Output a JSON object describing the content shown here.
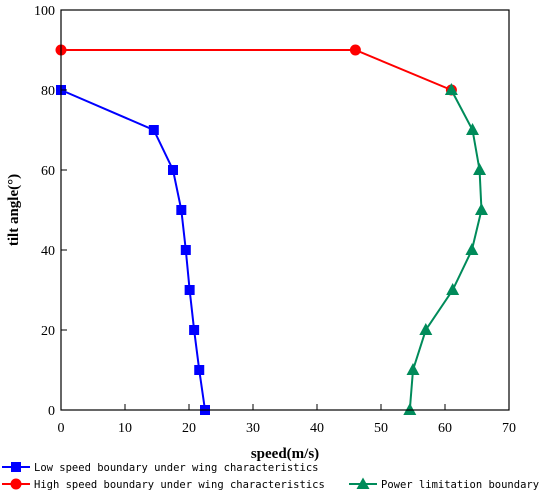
{
  "chart_data": {
    "type": "line",
    "xlabel": "speed(m/s)",
    "ylabel": "tilt angle(°)",
    "xlim": [
      0,
      70
    ],
    "ylim": [
      0,
      100
    ],
    "xticks": [
      0,
      10,
      20,
      30,
      40,
      50,
      60,
      70
    ],
    "yticks": [
      0,
      20,
      40,
      60,
      80,
      100
    ],
    "grid": false,
    "legend_position": "bottom",
    "series": [
      {
        "name": "Low speed boundary under wing characteristics",
        "color": "#0000ff",
        "marker": "square",
        "points": [
          [
            0,
            80
          ],
          [
            14.5,
            70
          ],
          [
            17.5,
            60
          ],
          [
            18.8,
            50
          ],
          [
            19.5,
            40
          ],
          [
            20.1,
            30
          ],
          [
            20.8,
            20
          ],
          [
            21.6,
            10
          ],
          [
            22.5,
            0
          ]
        ]
      },
      {
        "name": "High speed boundary under wing characteristics",
        "color": "#ff0000",
        "marker": "circle",
        "points": [
          [
            0,
            90
          ],
          [
            46,
            90
          ],
          [
            61,
            80
          ]
        ]
      },
      {
        "name": "Power limitation boundary",
        "color": "#008b5a",
        "marker": "triangle",
        "points": [
          [
            61,
            80
          ],
          [
            64.3,
            70
          ],
          [
            65.4,
            60
          ],
          [
            65.7,
            50
          ],
          [
            64.2,
            40
          ],
          [
            61.2,
            30
          ],
          [
            57,
            20
          ],
          [
            55,
            10
          ],
          [
            54.5,
            0
          ]
        ]
      }
    ]
  }
}
